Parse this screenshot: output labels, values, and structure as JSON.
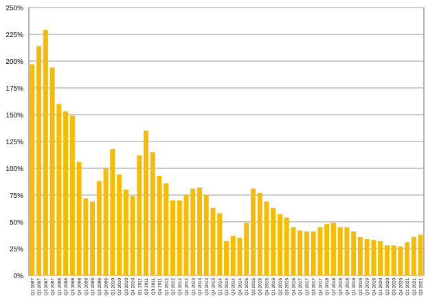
{
  "chart_data": {
    "type": "bar",
    "categories": [
      "Q1 2007",
      "Q2 2007",
      "Q3 2007",
      "Q4 2007",
      "Q1 2008",
      "Q2 2008",
      "Q3 2008",
      "Q4 2008",
      "Q1 2009",
      "Q2 2009",
      "Q3 2009",
      "Q4 2009",
      "Q1 2010",
      "Q2 2010",
      "Q3 2010",
      "Q4 2010",
      "Q1 2011",
      "Q2 2011",
      "Q3 2011",
      "Q4 2011",
      "Q1 2012",
      "Q2 2012",
      "Q3 2012",
      "Q4 2012",
      "Q1 2013",
      "Q2 2013",
      "Q3 2013",
      "Q4 2013",
      "Q1 2014",
      "Q2 2014",
      "Q3 2014",
      "Q4 2014",
      "Q1 2015",
      "Q2 2015",
      "Q3 2015",
      "Q4 2015",
      "Q1 2016",
      "Q2 2016",
      "Q3 2016",
      "Q4 2016",
      "Q1 2017",
      "Q2 2017",
      "Q3 2017",
      "Q4 2017",
      "Q1 2018",
      "Q2 2018",
      "Q3 2018",
      "Q4 2018",
      "Q1 2019",
      "Q2 2019",
      "Q3 2019",
      "Q4 2019",
      "Q1 2020",
      "Q2 2020",
      "Q3 2020",
      "Q4 2020",
      "Q1 2021",
      "Q2 2021",
      "Q3 2021"
    ],
    "values": [
      197,
      214,
      229,
      194,
      160,
      153,
      149,
      106,
      72,
      69,
      88,
      100,
      118,
      94,
      80,
      74,
      112,
      135,
      115,
      93,
      86,
      70,
      70,
      75,
      81,
      82,
      75,
      63,
      58,
      32,
      37,
      35,
      49,
      81,
      77,
      69,
      63,
      57,
      54,
      45,
      42,
      41,
      41,
      45,
      48,
      49,
      45,
      45,
      41,
      36,
      34,
      33,
      32,
      28,
      28,
      27,
      31,
      36,
      38
    ],
    "color": "#f7bb00",
    "ylim": [
      0,
      250
    ],
    "yticks": [
      {
        "value": 0,
        "label": "0%"
      },
      {
        "value": 25,
        "label": "25%"
      },
      {
        "value": 50,
        "label": "50%"
      },
      {
        "value": 75,
        "label": "75%"
      },
      {
        "value": 100,
        "label": "100%"
      },
      {
        "value": 125,
        "label": "125%"
      },
      {
        "value": 150,
        "label": "150%"
      },
      {
        "value": 175,
        "label": "175%"
      },
      {
        "value": 200,
        "label": "200%"
      },
      {
        "value": 225,
        "label": "225%"
      },
      {
        "value": 250,
        "label": "250%"
      }
    ],
    "grid": true
  }
}
